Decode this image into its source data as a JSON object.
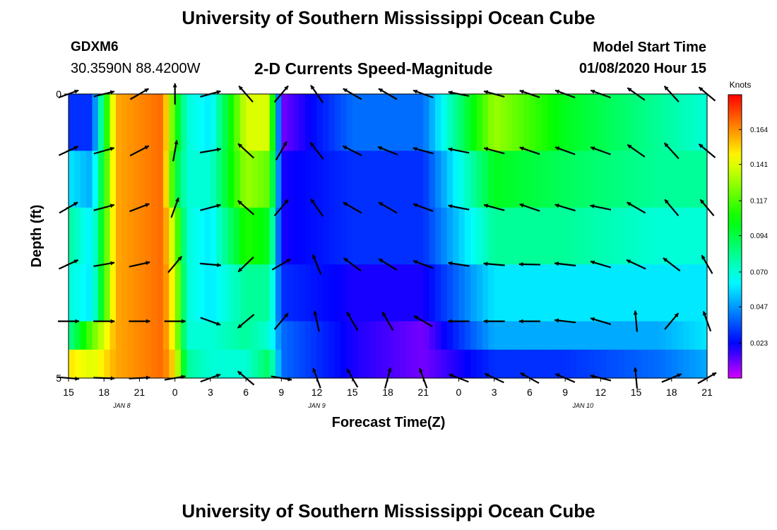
{
  "header": {
    "title": "University of Southern Mississippi Ocean Cube",
    "station_id": "GDXM6",
    "coordinates": "30.3590N 88.4200W",
    "plot_title": "2-D Currents Speed-Magnitude",
    "model_start_label": "Model Start Time",
    "model_start_value": "01/08/2020 Hour 15"
  },
  "footer": {
    "title": "University of Southern Mississippi Ocean Cube"
  },
  "chart_data": {
    "type": "heatmap",
    "title": "2-D Currents Speed-Magnitude",
    "xlabel": "Forecast Time(Z)",
    "ylabel": "Depth (ft)",
    "ylim": [
      0,
      5
    ],
    "x_hours_range": [
      0,
      54
    ],
    "x_tick_labels": [
      "15",
      "18",
      "21",
      "0",
      "3",
      "6",
      "9",
      "12",
      "15",
      "18",
      "21",
      "0",
      "3",
      "6",
      "9",
      "12",
      "15",
      "18",
      "21"
    ],
    "y_tick_labels": [
      "0",
      "5"
    ],
    "date_labels": [
      {
        "label": "JAN 8",
        "hour": 4.5
      },
      {
        "label": "JAN 9",
        "hour": 21
      },
      {
        "label": "JAN 10",
        "hour": 43.5
      }
    ],
    "colorbar": {
      "label": "Knots",
      "range": [
        0.0,
        0.187
      ],
      "tick_values": [
        0.023,
        0.047,
        0.07,
        0.094,
        0.117,
        0.141,
        0.164
      ],
      "tick_labels": [
        "0.023",
        "0.047",
        "0.070",
        "0.094",
        "0.117",
        "0.141",
        "0.164"
      ]
    },
    "depth_rows": [
      "0.0-1.0",
      "1.0-2.0",
      "2.0-3.0",
      "3.0-4.0",
      "4.0-4.5",
      "4.5-5.0"
    ],
    "speed_keyframes_knots": [
      {
        "hour": 0,
        "speeds": [
          0.03,
          0.06,
          0.08,
          0.07,
          0.08,
          0.15
        ]
      },
      {
        "hour": 2,
        "speeds": [
          0.03,
          0.05,
          0.06,
          0.06,
          0.12,
          0.14
        ]
      },
      {
        "hour": 4,
        "speeds": [
          0.16,
          0.16,
          0.16,
          0.16,
          0.16,
          0.16
        ]
      },
      {
        "hour": 8,
        "speeds": [
          0.17,
          0.17,
          0.17,
          0.17,
          0.17,
          0.17
        ]
      },
      {
        "hour": 9,
        "speeds": [
          0.11,
          0.1,
          0.13,
          0.14,
          0.14,
          0.15
        ]
      },
      {
        "hour": 10,
        "speeds": [
          0.07,
          0.07,
          0.07,
          0.07,
          0.07,
          0.08
        ]
      },
      {
        "hour": 12,
        "speeds": [
          0.06,
          0.07,
          0.06,
          0.06,
          0.07,
          0.07
        ]
      },
      {
        "hour": 15,
        "speeds": [
          0.14,
          0.13,
          0.11,
          0.08,
          0.08,
          0.07
        ]
      },
      {
        "hour": 17,
        "speeds": [
          0.14,
          0.12,
          0.1,
          0.08,
          0.07,
          0.09
        ]
      },
      {
        "hour": 18,
        "speeds": [
          0.01,
          0.02,
          0.02,
          0.03,
          0.04,
          0.04
        ]
      },
      {
        "hour": 24,
        "speeds": [
          0.04,
          0.03,
          0.03,
          0.02,
          0.02,
          0.02
        ]
      },
      {
        "hour": 30,
        "speeds": [
          0.04,
          0.03,
          0.03,
          0.02,
          0.01,
          0.01
        ]
      },
      {
        "hour": 36,
        "speeds": [
          0.13,
          0.1,
          0.08,
          0.06,
          0.05,
          0.03
        ]
      },
      {
        "hour": 42,
        "speeds": [
          0.1,
          0.09,
          0.08,
          0.06,
          0.05,
          0.03
        ]
      },
      {
        "hour": 50,
        "speeds": [
          0.08,
          0.08,
          0.07,
          0.06,
          0.05,
          0.04
        ]
      },
      {
        "hour": 54,
        "speeds": [
          0.07,
          0.08,
          0.07,
          0.06,
          0.06,
          0.05
        ]
      }
    ],
    "vector_depths_ft": [
      0.0,
      1.0,
      2.0,
      3.0,
      4.0,
      5.0
    ],
    "vector_hours": [
      0,
      3,
      6,
      9,
      12,
      15,
      18,
      21,
      24,
      27,
      30,
      33,
      36,
      39,
      42,
      45,
      48,
      51,
      54
    ],
    "vector_keyframes_deg": [
      {
        "hour": 0,
        "dirs": [
          70,
          65,
          60,
          65,
          90,
          95
        ]
      },
      {
        "hour": 5,
        "dirs": [
          80,
          80,
          85,
          90,
          90,
          90
        ]
      },
      {
        "hour": 9,
        "dirs": [
          0,
          10,
          20,
          40,
          90,
          80
        ]
      },
      {
        "hour": 12,
        "dirs": [
          75,
          80,
          75,
          95,
          110,
          70
        ]
      },
      {
        "hour": 16,
        "dirs": [
          280,
          270,
          270,
          270,
          270,
          270
        ]
      },
      {
        "hour": 18,
        "dirs": [
          40,
          30,
          40,
          60,
          40,
          100
        ]
      },
      {
        "hour": 22,
        "dirs": [
          300,
          300,
          300,
          310,
          330,
          300
        ]
      },
      {
        "hour": 28,
        "dirs": [
          300,
          290,
          300,
          300,
          330,
          30
        ]
      },
      {
        "hour": 32,
        "dirs": [
          280,
          280,
          280,
          280,
          270,
          290
        ]
      },
      {
        "hour": 40,
        "dirs": [
          290,
          290,
          290,
          270,
          270,
          300
        ]
      },
      {
        "hour": 46,
        "dirs": [
          290,
          290,
          280,
          290,
          290,
          280
        ]
      },
      {
        "hour": 50,
        "dirs": [
          320,
          320,
          320,
          300,
          60,
          70
        ]
      },
      {
        "hour": 54,
        "dirs": [
          310,
          310,
          320,
          330,
          340,
          60
        ]
      }
    ]
  }
}
